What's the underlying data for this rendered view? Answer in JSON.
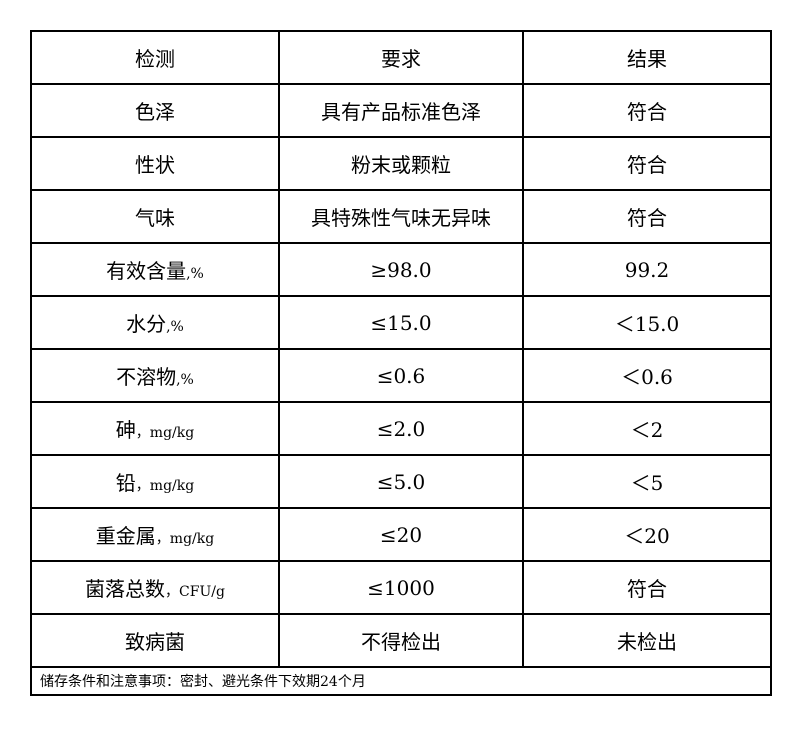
{
  "header": [
    "检测",
    "要求",
    "结果"
  ],
  "rows": [
    {
      "item": "色泽",
      "unit": "",
      "requirement": "具有产品标准色泽",
      "result": "符合"
    },
    {
      "item": "性状",
      "unit": "",
      "requirement": "粉末或颗粒",
      "result": "符合"
    },
    {
      "item": "气味",
      "unit": "",
      "requirement": "具特殊性气味无异味",
      "result": "符合"
    },
    {
      "item": "有效含量",
      "unit": ",%",
      "requirement": "≥98.0",
      "result": "99.2"
    },
    {
      "item": "水分",
      "unit": ",%",
      "requirement": "≤15.0",
      "result": "＜15.0"
    },
    {
      "item": "不溶物",
      "unit": ",%",
      "requirement": "≤0.6",
      "result": "＜0.6"
    },
    {
      "item": "砷",
      "unit": "，mg/kg",
      "requirement": "≤2.0",
      "result": "＜2"
    },
    {
      "item": "铅",
      "unit": "，mg/kg",
      "requirement": "≤5.0",
      "result": "＜5"
    },
    {
      "item": "重金属",
      "unit": "，mg/kg",
      "requirement": "≤20",
      "result": "＜20"
    },
    {
      "item": "菌落总数",
      "unit": "，CFU/g",
      "requirement": "≤1000",
      "result": "符合"
    },
    {
      "item": "致病菌",
      "unit": "",
      "requirement": "不得检出",
      "result": "未检出"
    }
  ],
  "footer": "储存条件和注意事项：密封、避光条件下效期24个月"
}
